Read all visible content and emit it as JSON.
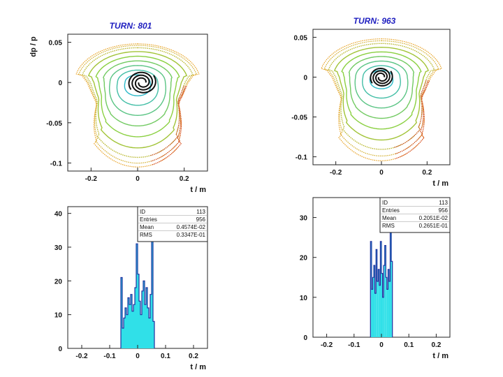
{
  "chart_data": [
    {
      "id": "phase-801",
      "type": "scatter",
      "title": "TURN: 801",
      "xlabel": "t / m",
      "ylabel": "dp / p",
      "xlim": [
        -0.3,
        0.3
      ],
      "ylim": [
        -0.11,
        0.06
      ],
      "xticks": [
        "-0.2",
        "0",
        "0.2"
      ],
      "yticks": [
        "0.05",
        "0",
        "-0.05",
        "-0.1"
      ],
      "contour_scales": [
        0.2,
        0.32,
        0.44,
        0.56,
        0.68,
        0.8,
        0.9,
        0.96,
        1.0
      ],
      "beam_spiral": {
        "x": 0.02,
        "y": 0.0,
        "rx": 0.06,
        "ry": 0.015
      },
      "colors": {
        "inner": "#2ab8c8",
        "mid": "#8ad040",
        "outer": "#e8a020",
        "edge": "#d03020",
        "beam": "#111111"
      }
    },
    {
      "id": "phase-963",
      "type": "scatter",
      "title": "TURN: 963",
      "xlabel": "t / m",
      "ylabel": "",
      "xlim": [
        -0.3,
        0.3
      ],
      "ylim": [
        -0.11,
        0.06
      ],
      "xticks": [
        "-0.2",
        "0",
        "0.2"
      ],
      "yticks": [
        "0.05",
        "0",
        "-0.05",
        "-0.1"
      ],
      "contour_scales": [
        0.18,
        0.3,
        0.42,
        0.54,
        0.66,
        0.78,
        0.88,
        0.95,
        1.0
      ],
      "beam_spiral": {
        "x": 0.0,
        "y": 0.0,
        "rx": 0.05,
        "ry": 0.013
      },
      "colors": {
        "inner": "#2ab8c8",
        "mid": "#8ad040",
        "outer": "#e8a020",
        "edge": "#d03020",
        "beam": "#111111"
      }
    },
    {
      "id": "hist-801",
      "type": "bar",
      "title": "",
      "xlabel": "t / m",
      "ylabel": "",
      "xlim": [
        -0.25,
        0.25
      ],
      "ylim": [
        0,
        42
      ],
      "xticks": [
        "-0.2",
        "-0.1",
        "0",
        "0.1",
        "0.2"
      ],
      "yticks": [
        "0",
        "10",
        "20",
        "30",
        "40"
      ],
      "stats": {
        "ID": "113",
        "Entries": "956",
        "Mean": "0.4574E-02",
        "RMS": "0.3347E-01"
      },
      "bins_x": [
        -0.06,
        -0.055,
        -0.05,
        -0.045,
        -0.04,
        -0.035,
        -0.03,
        -0.025,
        -0.02,
        -0.015,
        -0.01,
        -0.005,
        0.0,
        0.005,
        0.01,
        0.015,
        0.02,
        0.025,
        0.03,
        0.035,
        0.04,
        0.045,
        0.05,
        0.055
      ],
      "values": [
        21,
        6,
        9,
        12,
        10,
        15,
        13,
        16,
        11,
        13,
        18,
        31,
        22,
        14,
        10,
        17,
        20,
        13,
        18,
        12,
        9,
        16,
        40,
        8
      ],
      "colors": {
        "fill": "#30e0e8",
        "line": "#2030a0"
      }
    },
    {
      "id": "hist-963",
      "type": "bar",
      "title": "",
      "xlabel": "t / m",
      "ylabel": "",
      "xlim": [
        -0.25,
        0.25
      ],
      "ylim": [
        0,
        35
      ],
      "xticks": [
        "-0.2",
        "-0.1",
        "0",
        "0.1",
        "0.2"
      ],
      "yticks": [
        "0",
        "10",
        "20",
        "30"
      ],
      "stats": {
        "ID": "113",
        "Entries": "956",
        "Mean": "0.2051E-02",
        "RMS": "0.2651E-01"
      },
      "bins_x": [
        -0.04,
        -0.036,
        -0.032,
        -0.028,
        -0.024,
        -0.02,
        -0.016,
        -0.012,
        -0.008,
        -0.004,
        0.0,
        0.004,
        0.008,
        0.012,
        0.016,
        0.02,
        0.024,
        0.028,
        0.032,
        0.036
      ],
      "values": [
        24,
        12,
        15,
        18,
        11,
        22,
        14,
        17,
        13,
        24,
        16,
        10,
        18,
        23,
        15,
        12,
        17,
        14,
        33,
        19
      ],
      "colors": {
        "fill": "#30e0e8",
        "line": "#2030a0"
      }
    }
  ]
}
